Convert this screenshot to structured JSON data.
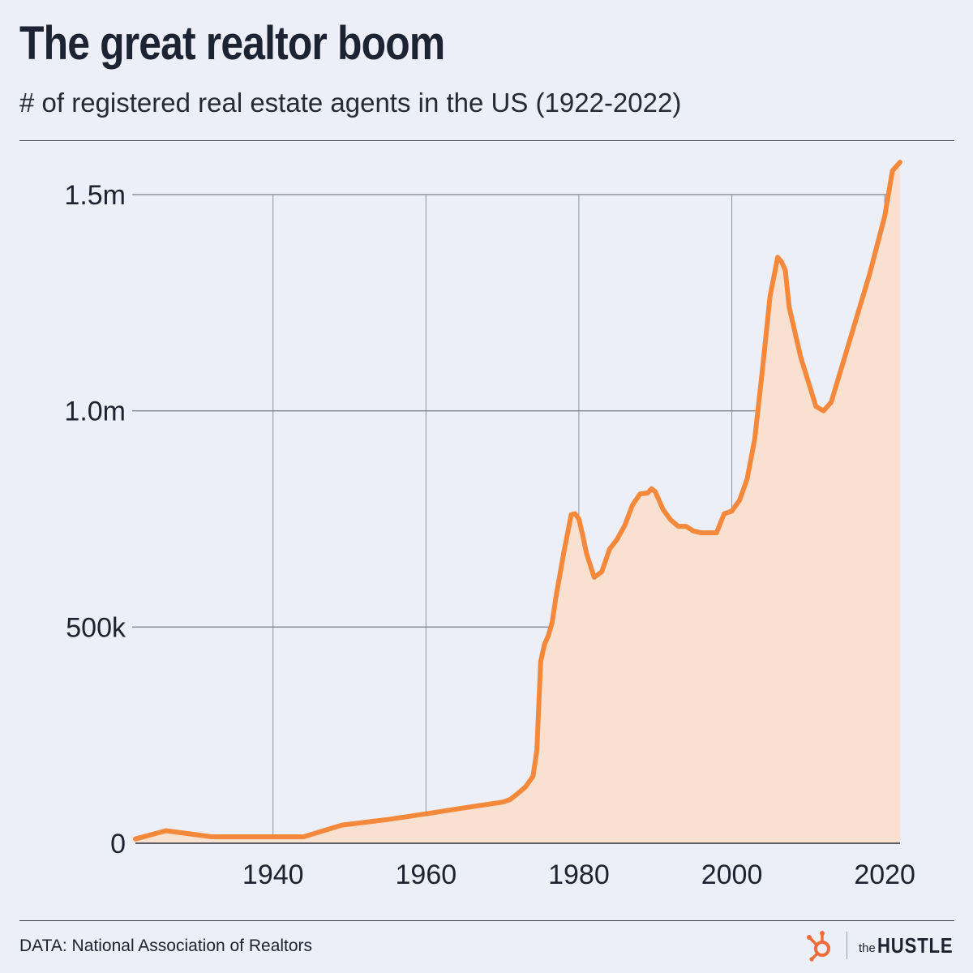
{
  "header": {
    "title": "The great realtor boom",
    "subtitle": "# of registered real estate agents in the US (1922-2022)"
  },
  "footer": {
    "source": "DATA: National Association of Realtors",
    "logo_the": "the",
    "logo_hustle": "HUSTLE"
  },
  "colors": {
    "line": "#f5893b",
    "fill": "#f8e1d1",
    "background": "#eceff7"
  },
  "chart_data": {
    "type": "area",
    "title": "The great realtor boom",
    "subtitle": "# of registered real estate agents in the US (1922-2022)",
    "xlabel": "",
    "ylabel": "",
    "xlim": [
      1922,
      2022
    ],
    "ylim": [
      0,
      1500000
    ],
    "grid": true,
    "x_ticks": [
      {
        "value": 1940,
        "label": "1940"
      },
      {
        "value": 1960,
        "label": "1960"
      },
      {
        "value": 1980,
        "label": "1980"
      },
      {
        "value": 2000,
        "label": "2000"
      },
      {
        "value": 2020,
        "label": "2020"
      }
    ],
    "y_ticks": [
      {
        "value": 0,
        "label": "0"
      },
      {
        "value": 500000,
        "label": "500k"
      },
      {
        "value": 1000000,
        "label": "1.0m"
      },
      {
        "value": 1500000,
        "label": "1.5m"
      }
    ],
    "series": [
      {
        "name": "Registered real estate agents",
        "x": [
          1922,
          1926,
          1932,
          1944,
          1949,
          1955,
          1960,
          1965,
          1970,
          1971,
          1972,
          1973,
          1974,
          1974.5,
          1975,
          1975.5,
          1976,
          1976.5,
          1977,
          1978,
          1979,
          1979.5,
          1980,
          1980.5,
          1981,
          1982,
          1983,
          1984,
          1985,
          1986,
          1987,
          1988,
          1989,
          1989.5,
          1990,
          1991,
          1992,
          1993,
          1994,
          1995,
          1996,
          1997,
          1998,
          1999,
          2000,
          2001,
          2002,
          2003,
          2004,
          2005,
          2006,
          2006.5,
          2007,
          2007.5,
          2009,
          2011,
          2012,
          2013,
          2018,
          2020,
          2021,
          2022
        ],
        "values": [
          10000,
          29000,
          15000,
          15000,
          42000,
          55000,
          68000,
          82000,
          95000,
          101000,
          115000,
          130000,
          155000,
          215000,
          420000,
          460000,
          480000,
          510000,
          570000,
          670000,
          760000,
          762000,
          750000,
          712000,
          670000,
          615000,
          628000,
          680000,
          703000,
          735000,
          782000,
          808000,
          810000,
          820000,
          813000,
          772000,
          748000,
          733000,
          733000,
          722000,
          718000,
          718000,
          718000,
          762000,
          768000,
          793000,
          842000,
          935000,
          1095000,
          1265000,
          1355000,
          1345000,
          1325000,
          1240000,
          1125000,
          1010000,
          1000000,
          1020000,
          1315000,
          1450000,
          1555000,
          1575000
        ]
      }
    ]
  }
}
